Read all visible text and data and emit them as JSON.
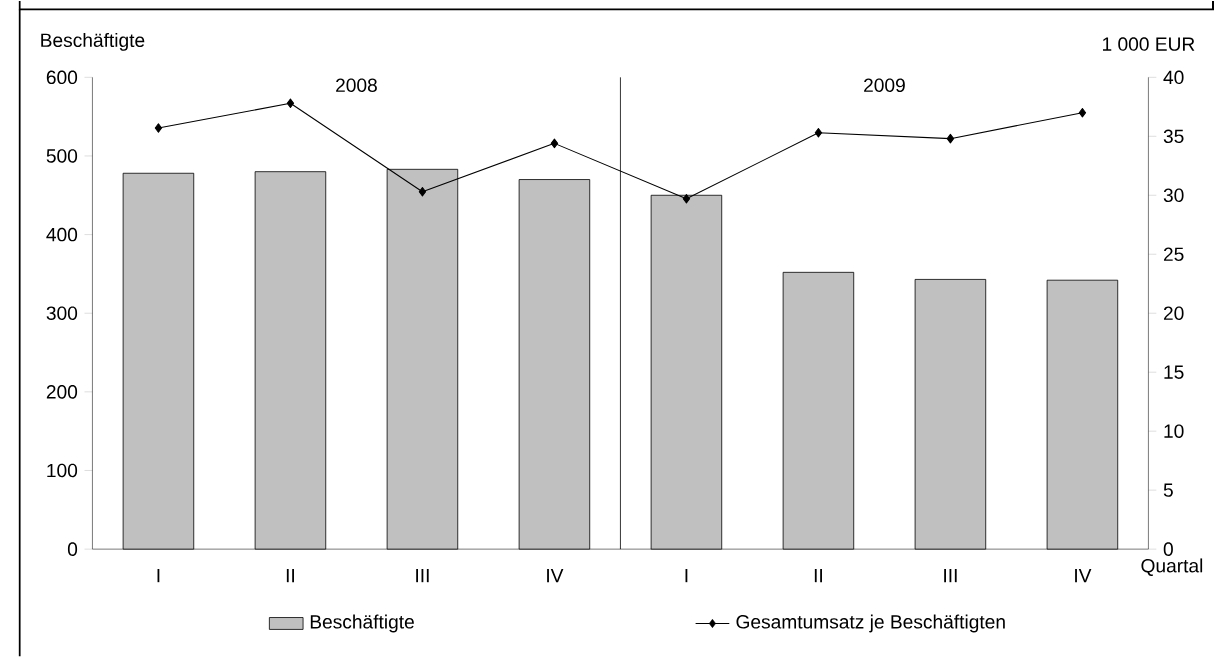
{
  "chart_data": {
    "type": "bar",
    "categories": [
      "I",
      "II",
      "III",
      "IV",
      "I",
      "II",
      "III",
      "IV"
    ],
    "series": [
      {
        "name": "Beschäftigte",
        "color": "#c0c0c0",
        "values": [
          478,
          480,
          483,
          470,
          450,
          352,
          343,
          342
        ]
      },
      {
        "name": "Gesamtumsatz je Beschäftigten",
        "type": "line",
        "axis": "y2",
        "color": "#000000",
        "marker": "diamond",
        "line_style": "solid",
        "values": [
          35.7,
          37.8,
          30.3,
          34.4,
          29.7,
          35.3,
          34.8,
          37.0
        ]
      }
    ],
    "xlabel": "Quartal",
    "ylabel": "Beschäftigte",
    "y2label": "1 000 EUR",
    "ylim": [
      0,
      600
    ],
    "yticks": [
      0,
      100,
      200,
      300,
      400,
      500,
      600
    ],
    "y2lim": [
      0,
      40
    ],
    "y2ticks": [
      0,
      5,
      10,
      15,
      20,
      25,
      30,
      35,
      40
    ],
    "annotations": [
      "2008",
      "2009"
    ],
    "grid": false,
    "legend": "bottom"
  }
}
